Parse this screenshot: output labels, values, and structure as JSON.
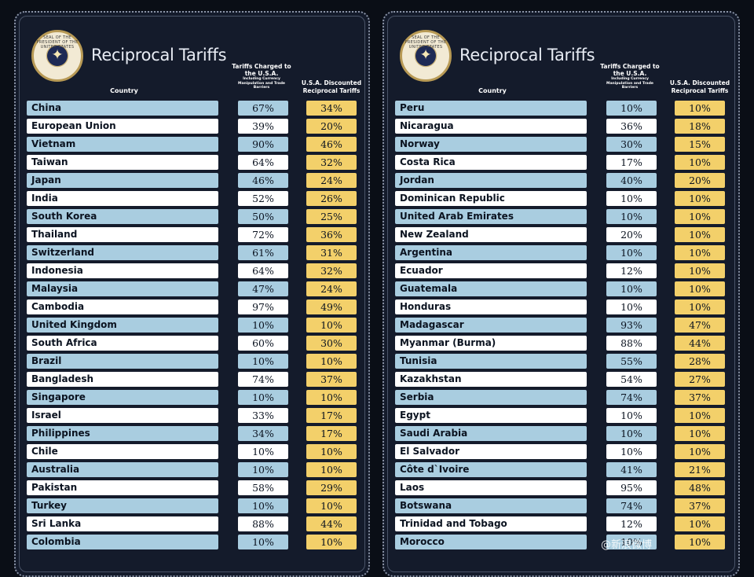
{
  "title": "Reciprocal Tariffs",
  "headers": {
    "country": "Country",
    "charged_main": "Tariffs Charged to the U.S.A.",
    "charged_sub": "Including Currency Manipulation and Trade Barriers",
    "discount": "U.S.A. Discounted Reciprocal Tariffs"
  },
  "seal": {
    "ring_text": "SEAL OF THE PRESIDENT OF THE UNITED STATES"
  },
  "colors": {
    "row_blue": "#a9cde0",
    "row_white": "#ffffff",
    "discount": "#f3d06a",
    "panel": "#141b2b"
  },
  "left_table": [
    {
      "country": "China",
      "charged": "67%",
      "discount": "34%"
    },
    {
      "country": "European Union",
      "charged": "39%",
      "discount": "20%"
    },
    {
      "country": "Vietnam",
      "charged": "90%",
      "discount": "46%"
    },
    {
      "country": "Taiwan",
      "charged": "64%",
      "discount": "32%"
    },
    {
      "country": "Japan",
      "charged": "46%",
      "discount": "24%"
    },
    {
      "country": "India",
      "charged": "52%",
      "discount": "26%"
    },
    {
      "country": "South Korea",
      "charged": "50%",
      "discount": "25%"
    },
    {
      "country": "Thailand",
      "charged": "72%",
      "discount": "36%"
    },
    {
      "country": "Switzerland",
      "charged": "61%",
      "discount": "31%"
    },
    {
      "country": "Indonesia",
      "charged": "64%",
      "discount": "32%"
    },
    {
      "country": "Malaysia",
      "charged": "47%",
      "discount": "24%"
    },
    {
      "country": "Cambodia",
      "charged": "97%",
      "discount": "49%"
    },
    {
      "country": "United Kingdom",
      "charged": "10%",
      "discount": "10%"
    },
    {
      "country": "South Africa",
      "charged": "60%",
      "discount": "30%"
    },
    {
      "country": "Brazil",
      "charged": "10%",
      "discount": "10%"
    },
    {
      "country": "Bangladesh",
      "charged": "74%",
      "discount": "37%"
    },
    {
      "country": "Singapore",
      "charged": "10%",
      "discount": "10%"
    },
    {
      "country": "Israel",
      "charged": "33%",
      "discount": "17%"
    },
    {
      "country": "Philippines",
      "charged": "34%",
      "discount": "17%"
    },
    {
      "country": "Chile",
      "charged": "10%",
      "discount": "10%"
    },
    {
      "country": "Australia",
      "charged": "10%",
      "discount": "10%"
    },
    {
      "country": "Pakistan",
      "charged": "58%",
      "discount": "29%"
    },
    {
      "country": "Turkey",
      "charged": "10%",
      "discount": "10%"
    },
    {
      "country": "Sri Lanka",
      "charged": "88%",
      "discount": "44%"
    },
    {
      "country": "Colombia",
      "charged": "10%",
      "discount": "10%"
    }
  ],
  "right_table": [
    {
      "country": "Peru",
      "charged": "10%",
      "discount": "10%"
    },
    {
      "country": "Nicaragua",
      "charged": "36%",
      "discount": "18%"
    },
    {
      "country": "Norway",
      "charged": "30%",
      "discount": "15%"
    },
    {
      "country": "Costa Rica",
      "charged": "17%",
      "discount": "10%"
    },
    {
      "country": "Jordan",
      "charged": "40%",
      "discount": "20%"
    },
    {
      "country": "Dominican Republic",
      "charged": "10%",
      "discount": "10%"
    },
    {
      "country": "United Arab Emirates",
      "charged": "10%",
      "discount": "10%"
    },
    {
      "country": "New Zealand",
      "charged": "20%",
      "discount": "10%"
    },
    {
      "country": "Argentina",
      "charged": "10%",
      "discount": "10%"
    },
    {
      "country": "Ecuador",
      "charged": "12%",
      "discount": "10%"
    },
    {
      "country": "Guatemala",
      "charged": "10%",
      "discount": "10%"
    },
    {
      "country": "Honduras",
      "charged": "10%",
      "discount": "10%"
    },
    {
      "country": "Madagascar",
      "charged": "93%",
      "discount": "47%"
    },
    {
      "country": "Myanmar (Burma)",
      "charged": "88%",
      "discount": "44%"
    },
    {
      "country": "Tunisia",
      "charged": "55%",
      "discount": "28%"
    },
    {
      "country": "Kazakhstan",
      "charged": "54%",
      "discount": "27%"
    },
    {
      "country": "Serbia",
      "charged": "74%",
      "discount": "37%"
    },
    {
      "country": "Egypt",
      "charged": "10%",
      "discount": "10%"
    },
    {
      "country": "Saudi Arabia",
      "charged": "10%",
      "discount": "10%"
    },
    {
      "country": "El Salvador",
      "charged": "10%",
      "discount": "10%"
    },
    {
      "country": "Côte d`Ivoire",
      "charged": "41%",
      "discount": "21%"
    },
    {
      "country": "Laos",
      "charged": "95%",
      "discount": "48%"
    },
    {
      "country": "Botswana",
      "charged": "74%",
      "discount": "37%"
    },
    {
      "country": "Trinidad and Tobago",
      "charged": "12%",
      "discount": "10%"
    },
    {
      "country": "Morocco",
      "charged": "10%",
      "discount": "10%"
    }
  ],
  "watermark": "@新浪微博"
}
